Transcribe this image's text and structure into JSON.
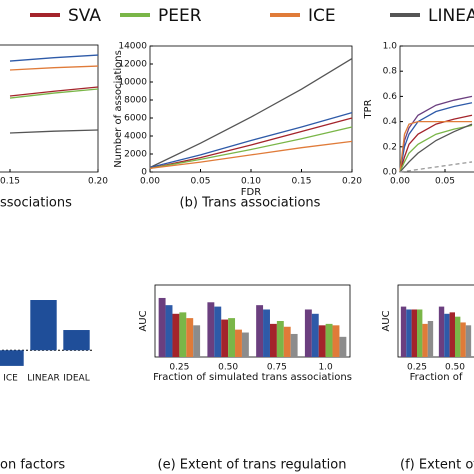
{
  "legend": [
    {
      "name": "SVA",
      "color": "#a4242b"
    },
    {
      "name": "PEER",
      "color": "#7ab648"
    },
    {
      "name": "ICE",
      "color": "#e07b39"
    },
    {
      "name": "LINEA",
      "color": "#555555"
    }
  ],
  "chart_data": [
    {
      "type": "line",
      "title": "ssociations",
      "x": [
        0.15,
        0.175,
        0.2
      ],
      "xlim": [
        0.15,
        0.2
      ],
      "xticks": [
        0.15,
        {
          "value": 0.2,
          "label": "0.20"
        }
      ],
      "ylim": [
        0,
        14000
      ],
      "series": [
        {
          "color": "#2e5aa8",
          "values": [
            12230,
            12600,
            12890
          ]
        },
        {
          "color": "#e07b39",
          "values": [
            11240,
            11500,
            11680
          ]
        },
        {
          "color": "#a4242b",
          "values": [
            8380,
            8900,
            9370
          ]
        },
        {
          "color": "#7ab648",
          "values": [
            8150,
            8700,
            9150
          ]
        },
        {
          "color": "#555555",
          "values": [
            4300,
            4500,
            4630
          ]
        }
      ]
    },
    {
      "type": "line",
      "title": "(b) Trans associations",
      "xlabel": "FDR",
      "ylabel": "Number of associations",
      "x": [
        0,
        0.05,
        0.1,
        0.15,
        0.2
      ],
      "xlim": [
        0,
        0.2
      ],
      "xticks": [
        {
          "value": 0,
          "label": "0.00"
        },
        0.05,
        {
          "value": 0.1,
          "label": "0.10"
        },
        0.15,
        {
          "value": 0.2,
          "label": "0.20"
        }
      ],
      "ylim": [
        0,
        14000
      ],
      "yticks": [
        0,
        2000,
        4000,
        6000,
        8000,
        10000,
        12000,
        14000
      ],
      "series": [
        {
          "color": "#555555",
          "values": [
            500,
            3200,
            6100,
            9200,
            12600
          ]
        },
        {
          "color": "#2e5aa8",
          "values": [
            500,
            1900,
            3500,
            5000,
            6600
          ]
        },
        {
          "color": "#a4242b",
          "values": [
            400,
            1600,
            3000,
            4500,
            6000
          ]
        },
        {
          "color": "#7ab648",
          "values": [
            400,
            1400,
            2500,
            3700,
            5000
          ]
        },
        {
          "color": "#e07b39",
          "values": [
            400,
            1100,
            1900,
            2700,
            3400
          ]
        }
      ]
    },
    {
      "type": "line",
      "ylabel": "TPR",
      "x": [
        0,
        0.005,
        0.01,
        0.02,
        0.04,
        0.06,
        0.08
      ],
      "xlim": [
        0,
        0.08
      ],
      "xticks": [
        {
          "value": 0,
          "label": "0.00"
        },
        0.05
      ],
      "ylim": [
        0,
        1
      ],
      "yticks": [
        {
          "value": 0,
          "label": "0.0"
        },
        0.2,
        0.4,
        0.6,
        0.8,
        {
          "value": 1,
          "label": "1.0"
        }
      ],
      "series": [
        {
          "color": "#6b3f7f",
          "values": [
            0,
            0.25,
            0.35,
            0.45,
            0.53,
            0.57,
            0.6
          ]
        },
        {
          "color": "#2e5aa8",
          "values": [
            0,
            0.2,
            0.3,
            0.4,
            0.48,
            0.52,
            0.55
          ]
        },
        {
          "color": "#a4242b",
          "values": [
            0,
            0.12,
            0.22,
            0.3,
            0.38,
            0.42,
            0.45
          ]
        },
        {
          "color": "#e07b39",
          "values": [
            0,
            0.3,
            0.38,
            0.4,
            0.4,
            0.4,
            0.4
          ]
        },
        {
          "color": "#7ab648",
          "values": [
            0,
            0.08,
            0.15,
            0.22,
            0.3,
            0.34,
            0.37
          ]
        },
        {
          "color": "#555555",
          "values": [
            0,
            0.04,
            0.08,
            0.15,
            0.25,
            0.32,
            0.38
          ]
        },
        {
          "color": "#999999",
          "dash": true,
          "values": [
            0,
            0.005,
            0.01,
            0.02,
            0.04,
            0.06,
            0.08
          ]
        }
      ]
    },
    {
      "type": "bar",
      "title": "on factors",
      "categories": [
        "ICE",
        "LINEAR",
        "IDEAL"
      ],
      "ylim": [
        -0.1,
        0.3
      ],
      "series": [
        {
          "color": "#1f4e99",
          "values": [
            -0.072,
            0.231,
            0.093
          ]
        }
      ]
    },
    {
      "type": "bar",
      "title": "(e) Extent of trans regulation",
      "xlabel": "Fraction of simulated trans associations",
      "ylabel": "AUC",
      "categories": [
        "0.25",
        "0.50",
        "0.75",
        "1.0"
      ],
      "ylim": [
        0.5,
        1.0
      ],
      "series": [
        {
          "color": "#6b3f7f",
          "values": [
            0.91,
            0.88,
            0.86,
            0.83
          ]
        },
        {
          "color": "#2e5aa8",
          "values": [
            0.86,
            0.85,
            0.83,
            0.8
          ]
        },
        {
          "color": "#a4242b",
          "values": [
            0.8,
            0.76,
            0.73,
            0.72
          ]
        },
        {
          "color": "#7ab648",
          "values": [
            0.81,
            0.77,
            0.75,
            0.73
          ]
        },
        {
          "color": "#e07b39",
          "values": [
            0.77,
            0.69,
            0.71,
            0.72
          ]
        },
        {
          "color": "#8c8c8c",
          "values": [
            0.72,
            0.67,
            0.66,
            0.64
          ]
        }
      ]
    },
    {
      "type": "bar",
      "title": "(f) Extent of c",
      "xlabel": "Fraction of",
      "ylabel": "AUC",
      "categories": [
        "0.25",
        "0.50"
      ],
      "ylim": [
        0.5,
        1.0
      ],
      "series": [
        {
          "color": "#6b3f7f",
          "values": [
            0.85,
            0.85
          ]
        },
        {
          "color": "#2e5aa8",
          "values": [
            0.83,
            0.8
          ]
        },
        {
          "color": "#a4242b",
          "values": [
            0.83,
            0.81
          ]
        },
        {
          "color": "#7ab648",
          "values": [
            0.83,
            0.78
          ]
        },
        {
          "color": "#e07b39",
          "values": [
            0.73,
            0.74
          ]
        },
        {
          "color": "#8c8c8c",
          "values": [
            0.75,
            0.72
          ]
        }
      ]
    }
  ]
}
